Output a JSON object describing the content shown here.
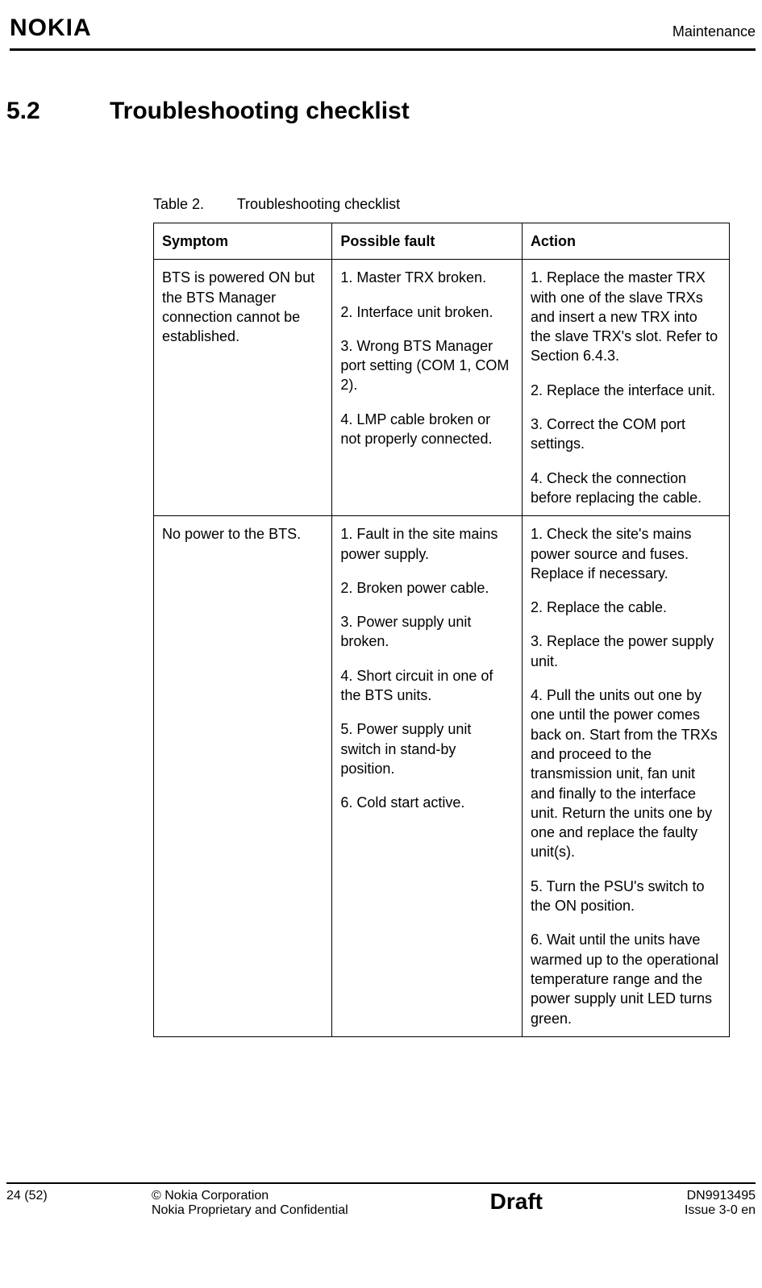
{
  "header": {
    "logo": "NOKIA",
    "section_label": "Maintenance"
  },
  "section": {
    "number": "5.2",
    "title": "Troubleshooting checklist"
  },
  "table": {
    "caption_label": "Table 2.",
    "caption_title": "Troubleshooting checklist",
    "columns": [
      "Symptom",
      "Possible fault",
      "Action"
    ],
    "rows": [
      {
        "symptom": "BTS is powered ON but the BTS Manager connection cannot be established.",
        "faults": [
          "1. Master TRX broken.",
          "2. Interface unit broken.",
          "3. Wrong BTS Manager port setting (COM 1, COM 2).",
          "4. LMP cable broken or not properly connected."
        ],
        "actions": [
          "1. Replace the master TRX with one of the slave TRXs and insert a new TRX into the slave TRX's slot. Refer to Section 6.4.3.",
          "2. Replace the interface unit.",
          "3. Correct the COM port settings.",
          "4. Check the connection before replacing the cable."
        ]
      },
      {
        "symptom": " No power to the BTS.",
        "faults": [
          "1. Fault in the site mains power supply.",
          "2. Broken power cable.",
          "3. Power supply unit broken.",
          "4. Short circuit in one of the BTS units.",
          "5. Power supply unit switch in stand-by position.",
          "6. Cold start active."
        ],
        "actions": [
          "1. Check the site's mains power source and fuses. Replace if necessary.",
          "2. Replace the cable.",
          "3. Replace the power supply unit.",
          "4. Pull the units out one by one until the power comes back on. Start from the TRXs and proceed to the transmission unit, fan unit and finally to the interface unit. Return the units one by one and replace the faulty unit(s).",
          "5. Turn the PSU's switch to the ON position.",
          "6. Wait until the units have warmed up to the operational temperature range and the power supply unit LED turns green."
        ]
      }
    ]
  },
  "footer": {
    "page": "24 (52)",
    "copyright": "© Nokia Corporation",
    "confidential": "Nokia Proprietary and Confidential",
    "draft": "Draft",
    "docno": "DN9913495",
    "issue": "Issue 3-0 en"
  }
}
